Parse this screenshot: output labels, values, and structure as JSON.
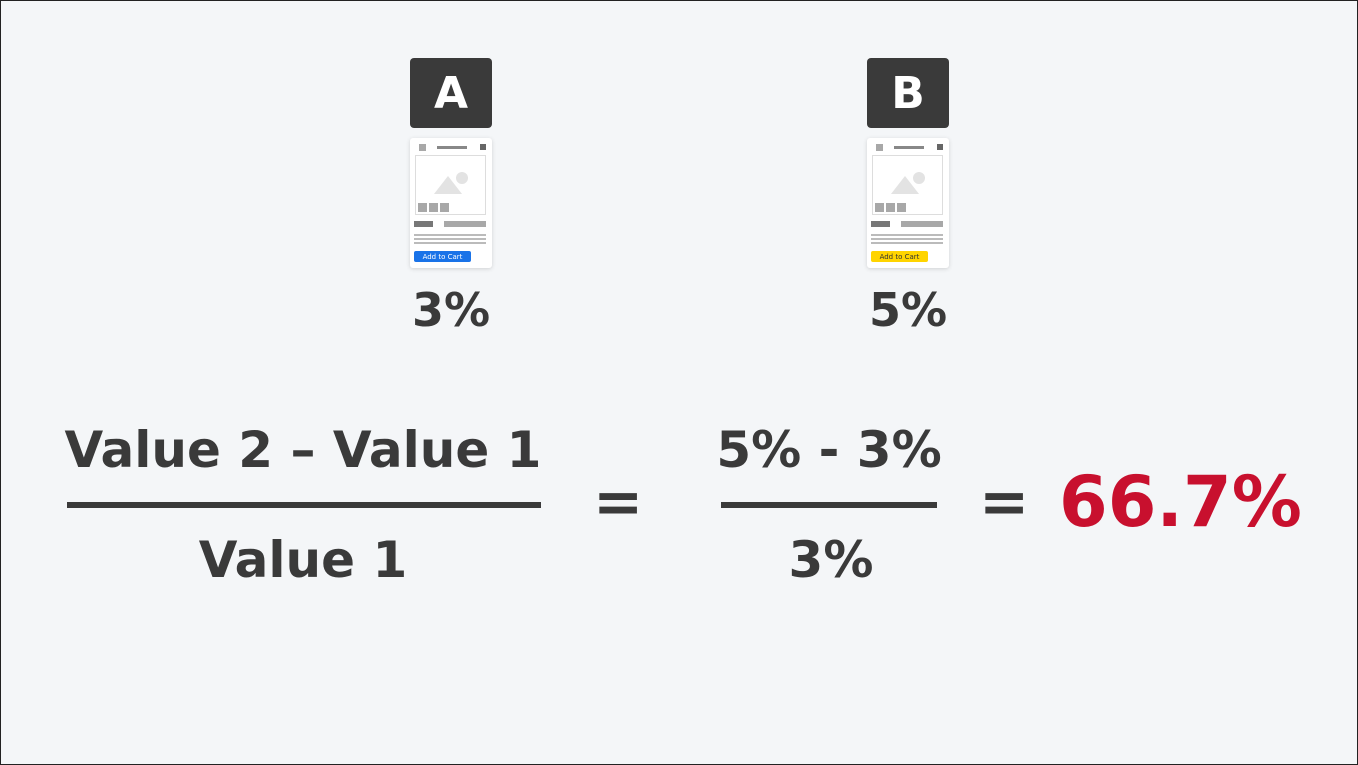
{
  "variants": [
    {
      "label": "A",
      "cta": "Add to Cart",
      "cta_color": "#1a73e8",
      "cta_text_color": "#ffffff",
      "rate": "3%"
    },
    {
      "label": "B",
      "cta": "Add to Cart",
      "cta_color": "#ffd400",
      "cta_text_color": "#333333",
      "rate": "5%"
    }
  ],
  "formula": {
    "numerator": "Value 2 – Value 1",
    "denominator": "Value 1",
    "equals": "=",
    "sub_numerator": "5% - 3%",
    "sub_denominator": "3%",
    "equals2": "=",
    "result": "66.7%",
    "result_color": "#c8102e"
  }
}
